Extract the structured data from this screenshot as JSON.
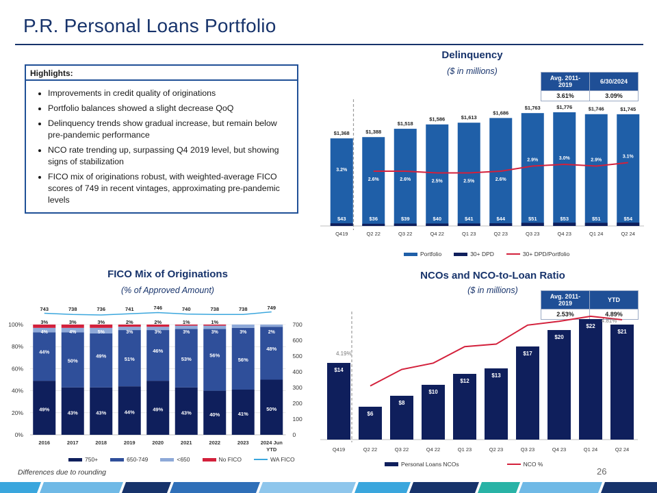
{
  "page": {
    "title": "P.R. Personal Loans Portfolio",
    "footnote": "Differences due to rounding",
    "page_number": "26"
  },
  "highlights": {
    "heading": "Highlights:",
    "items": [
      "Improvements in credit quality of originations",
      "Portfolio balances showed a slight decrease QoQ",
      "Delinquency trends show gradual increase, but remain below pre-pandemic performance",
      "NCO rate trending up, surpassing Q4 2019 level, but showing signs of stabilization",
      "FICO mix of originations robust, with weighted-average FICO scores of 749 in recent vintages, approximating  pre-pandemic levels"
    ]
  },
  "colors": {
    "navy": "#0f1f5c",
    "blue": "#1f5fa8",
    "mid": "#2f4f9a",
    "light": "#8ea9d8",
    "red": "#d3203b",
    "teal": "#3aa6dd"
  },
  "delinquency_table": {
    "headers": [
      "Avg. 2011-2019",
      "6/30/2024"
    ],
    "values": [
      "3.61%",
      "3.09%"
    ]
  },
  "nco_table": {
    "headers": [
      "Avg. 2011-2019",
      "YTD"
    ],
    "values": [
      "2.53%",
      "4.89%"
    ]
  },
  "chart_data": [
    {
      "type": "bar",
      "title": "Delinquency",
      "subtitle": "($ in millions)",
      "categories": [
        "Q419",
        "Q2 22",
        "Q3 22",
        "Q4 22",
        "Q1 23",
        "Q2 23",
        "Q3 23",
        "Q4 23",
        "Q1 24",
        "Q2 24"
      ],
      "series": [
        {
          "name": "Portfolio",
          "values": [
            1368,
            1388,
            1518,
            1586,
            1613,
            1686,
            1763,
            1776,
            1746,
            1745
          ],
          "labels": [
            "$1,368",
            "$1,388",
            "$1,518",
            "$1,586",
            "$1,613",
            "$1,686",
            "$1,763",
            "$1,776",
            "$1,746",
            "$1,745"
          ]
        },
        {
          "name": "30+ DPD",
          "values": [
            43,
            36,
            39,
            40,
            41,
            44,
            51,
            53,
            51,
            54
          ],
          "labels": [
            "$43",
            "$36",
            "$39",
            "$40",
            "$41",
            "$44",
            "$51",
            "$53",
            "$51",
            "$54"
          ]
        },
        {
          "name": "30+ DPD/Portfolio",
          "values": [
            3.2,
            2.6,
            2.6,
            2.5,
            2.5,
            2.6,
            2.9,
            3.0,
            2.9,
            3.1
          ],
          "labels": [
            "3.2%",
            "2.6%",
            "2.6%",
            "2.5%",
            "2.5%",
            "2.6%",
            "2.9%",
            "3.0%",
            "2.9%",
            "3.1%"
          ]
        }
      ],
      "legend_position": "bottom"
    },
    {
      "type": "bar",
      "stacked": true,
      "title": "FICO Mix of Originations",
      "subtitle": "(% of Approved Amount)",
      "categories": [
        "2016",
        "2017",
        "2018",
        "2019",
        "2020",
        "2021",
        "2022",
        "2023",
        "2024 Jun YTD"
      ],
      "y_left_ticks": [
        "0%",
        "20%",
        "40%",
        "60%",
        "80%",
        "100%"
      ],
      "y_right_ticks": [
        "0",
        "100",
        "200",
        "300",
        "400",
        "500",
        "600",
        "700"
      ],
      "series": [
        {
          "name": "750+",
          "values": [
            49,
            43,
            43,
            44,
            49,
            43,
            40,
            41,
            50
          ]
        },
        {
          "name": "650-749",
          "values": [
            44,
            50,
            49,
            51,
            46,
            53,
            56,
            56,
            48
          ]
        },
        {
          "name": "<650",
          "values": [
            4,
            4,
            5,
            3,
            3,
            3,
            3,
            3,
            2
          ]
        },
        {
          "name": "No FICO",
          "values": [
            3,
            3,
            3,
            2,
            2,
            1,
            1,
            0,
            0
          ]
        },
        {
          "name": "WA FICO",
          "values": [
            743,
            738,
            736,
            741,
            746,
            740,
            738,
            738,
            749
          ]
        }
      ],
      "labels_750": [
        "49%",
        "43%",
        "43%",
        "44%",
        "49%",
        "43%",
        "40%",
        "41%",
        "50%"
      ],
      "labels_650": [
        "44%",
        "50%",
        "49%",
        "51%",
        "46%",
        "53%",
        "56%",
        "56%",
        "48%"
      ],
      "labels_lt650": [
        "4%",
        "4%",
        "5%",
        "3%",
        "3%",
        "3%",
        "3%",
        "3%",
        "2%"
      ],
      "labels_nofico": [
        "3%",
        "3%",
        "3%",
        "2%",
        "2%",
        "1%",
        "1%",
        "",
        ""
      ],
      "labels_wafico": [
        "743",
        "738",
        "736",
        "741",
        "746",
        "740",
        "738",
        "738",
        "749"
      ],
      "legend_position": "bottom"
    },
    {
      "type": "bar",
      "title": "NCOs and NCO-to-Loan Ratio",
      "subtitle": "($ in millions)",
      "categories": [
        "Q419",
        "Q2 22",
        "Q3 22",
        "Q4 22",
        "Q1 23",
        "Q2 23",
        "Q3 23",
        "Q4 23",
        "Q1 24",
        "Q2 24"
      ],
      "series": [
        {
          "name": "Personal Loans NCOs",
          "values": [
            14,
            6,
            8,
            10,
            12,
            13,
            17,
            20,
            22,
            21
          ],
          "labels": [
            "$14",
            "$6",
            "$8",
            "$10",
            "$12",
            "$13",
            "$17",
            "$20",
            "$22",
            "$21"
          ]
        },
        {
          "name": "NCO %",
          "values": [
            4.19,
            2.2,
            2.85,
            3.1,
            3.75,
            3.85,
            4.6,
            4.75,
            4.95,
            4.81
          ]
        }
      ],
      "line_callouts": [
        "4.19%",
        "4.81%"
      ],
      "legend_position": "bottom"
    }
  ]
}
